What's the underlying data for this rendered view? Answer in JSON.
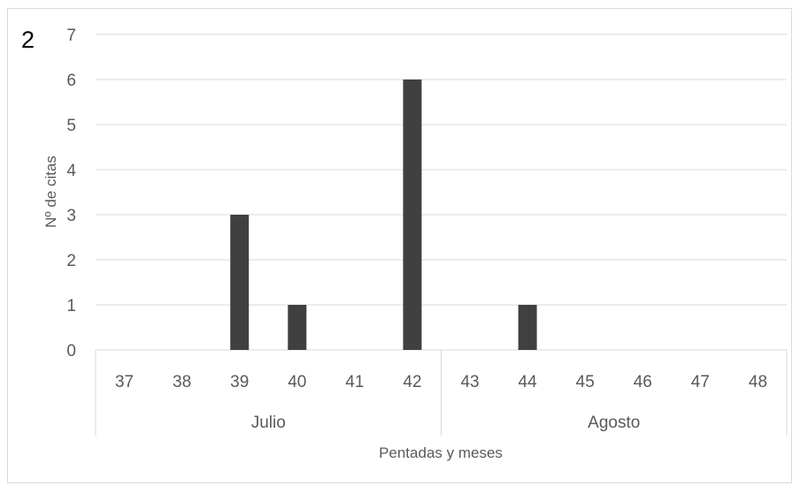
{
  "panel_label": "2",
  "chart_data": {
    "type": "bar",
    "categories": [
      "37",
      "38",
      "39",
      "40",
      "41",
      "42",
      "43",
      "44",
      "45",
      "46",
      "47",
      "48"
    ],
    "groups": [
      {
        "label": "Julio",
        "categories": [
          "37",
          "38",
          "39",
          "40",
          "41",
          "42"
        ]
      },
      {
        "label": "Agosto",
        "categories": [
          "43",
          "44",
          "45",
          "46",
          "47",
          "48"
        ]
      }
    ],
    "values": [
      0,
      0,
      3,
      1,
      0,
      6,
      0,
      1,
      0,
      0,
      0,
      0
    ],
    "ylabel": "Nº de citas",
    "xlabel": "Pentadas y meses",
    "ylim": [
      0,
      7
    ],
    "yticks": [
      0,
      1,
      2,
      3,
      4,
      5,
      6,
      7
    ],
    "grid": "horizontal",
    "bar_color": "#404040",
    "grid_color": "#d9d9d9",
    "text_color": "#595959"
  }
}
